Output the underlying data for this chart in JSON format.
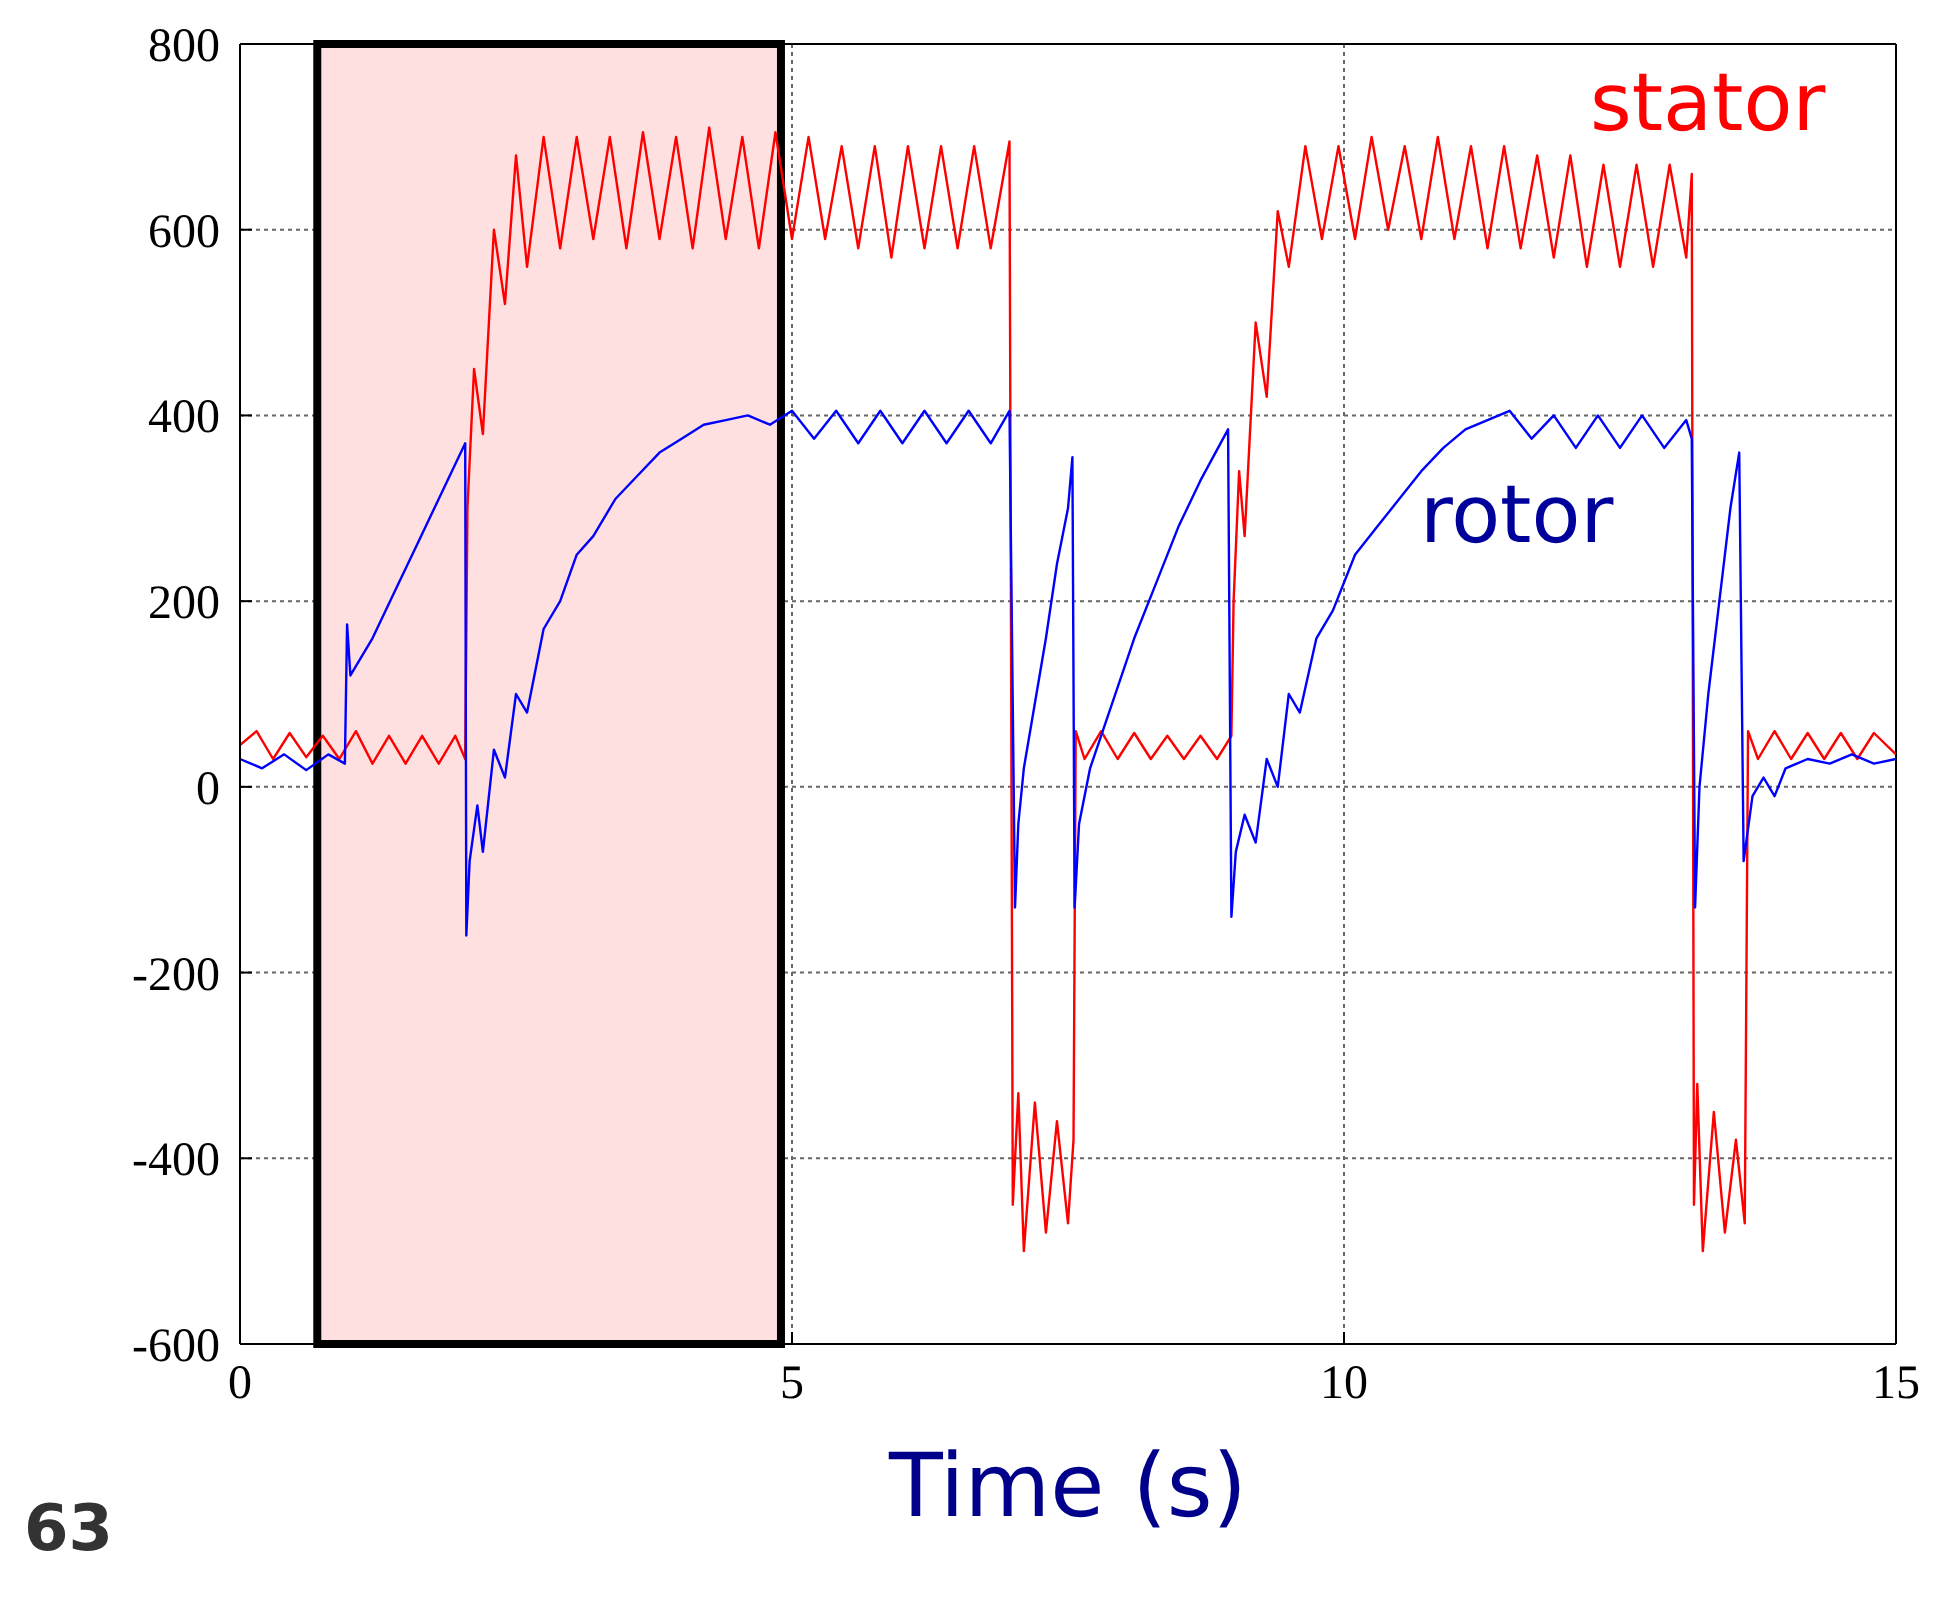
{
  "chart_data": {
    "type": "line",
    "xlabel": "Time (s)",
    "annotations": [
      "63"
    ],
    "xlim": [
      0,
      15
    ],
    "xticks": [
      0,
      5,
      10,
      15
    ],
    "ylim": [
      -600,
      800
    ],
    "yticks": [
      -600,
      -400,
      -200,
      0,
      200,
      400,
      600,
      800
    ],
    "grid": true,
    "marker": "none",
    "line_style": "solid",
    "bands": [
      {
        "axis": "x",
        "from": 0.7,
        "to": 4.9,
        "color": "#ffe0e0"
      }
    ],
    "series": [
      {
        "name": "stator",
        "color": "#ff0000",
        "x": [
          0,
          0.15,
          0.3,
          0.45,
          0.6,
          0.75,
          0.9,
          1.05,
          1.2,
          1.35,
          1.5,
          1.65,
          1.8,
          1.95,
          2.04,
          2.06,
          2.12,
          2.2,
          2.3,
          2.4,
          2.5,
          2.6,
          2.75,
          2.9,
          3.05,
          3.2,
          3.35,
          3.5,
          3.65,
          3.8,
          3.95,
          4.1,
          4.25,
          4.4,
          4.55,
          4.7,
          4.85,
          5.0,
          5.15,
          5.3,
          5.45,
          5.6,
          5.75,
          5.9,
          6.05,
          6.2,
          6.35,
          6.5,
          6.65,
          6.8,
          6.97,
          7.0,
          7.05,
          7.1,
          7.2,
          7.3,
          7.4,
          7.5,
          7.55,
          7.57,
          7.65,
          7.8,
          7.95,
          8.1,
          8.25,
          8.4,
          8.55,
          8.7,
          8.85,
          8.98,
          9.0,
          9.05,
          9.1,
          9.2,
          9.3,
          9.4,
          9.5,
          9.65,
          9.8,
          9.95,
          10.1,
          10.25,
          10.4,
          10.55,
          10.7,
          10.85,
          11.0,
          11.15,
          11.3,
          11.45,
          11.6,
          11.75,
          11.9,
          12.05,
          12.2,
          12.35,
          12.5,
          12.65,
          12.8,
          12.95,
          13.1,
          13.15,
          13.17,
          13.2,
          13.25,
          13.35,
          13.45,
          13.55,
          13.63,
          13.66,
          13.75,
          13.9,
          14.05,
          14.2,
          14.35,
          14.5,
          14.65,
          14.8,
          15
        ],
        "values": [
          45,
          60,
          30,
          58,
          32,
          55,
          30,
          60,
          25,
          55,
          25,
          55,
          25,
          55,
          30,
          300,
          450,
          380,
          600,
          520,
          680,
          560,
          700,
          580,
          700,
          590,
          700,
          580,
          705,
          590,
          700,
          580,
          710,
          590,
          700,
          580,
          705,
          590,
          700,
          590,
          690,
          580,
          690,
          570,
          690,
          580,
          690,
          580,
          690,
          580,
          695,
          -450,
          -330,
          -500,
          -340,
          -480,
          -360,
          -470,
          -380,
          60,
          30,
          60,
          30,
          58,
          30,
          55,
          30,
          55,
          30,
          55,
          200,
          340,
          270,
          500,
          420,
          620,
          560,
          690,
          590,
          690,
          590,
          700,
          600,
          690,
          590,
          700,
          590,
          690,
          580,
          690,
          580,
          680,
          570,
          680,
          560,
          670,
          560,
          670,
          560,
          670,
          570,
          660,
          -450,
          -320,
          -500,
          -350,
          -480,
          -380,
          -470,
          60,
          30,
          60,
          30,
          58,
          30,
          58,
          30,
          58,
          35
        ]
      },
      {
        "name": "rotor",
        "color": "#0000ff",
        "x": [
          0,
          0.2,
          0.4,
          0.6,
          0.8,
          0.95,
          0.97,
          1.0,
          1.2,
          1.4,
          1.6,
          1.8,
          2.04,
          2.05,
          2.08,
          2.15,
          2.2,
          2.3,
          2.4,
          2.5,
          2.6,
          2.75,
          2.9,
          3.05,
          3.2,
          3.4,
          3.6,
          3.8,
          4.0,
          4.2,
          4.4,
          4.6,
          4.8,
          5.0,
          5.2,
          5.4,
          5.6,
          5.8,
          6.0,
          6.2,
          6.4,
          6.6,
          6.8,
          6.97,
          7.02,
          7.05,
          7.1,
          7.2,
          7.3,
          7.4,
          7.5,
          7.54,
          7.56,
          7.6,
          7.7,
          7.9,
          8.1,
          8.3,
          8.5,
          8.7,
          8.95,
          8.98,
          9.02,
          9.1,
          9.2,
          9.3,
          9.4,
          9.5,
          9.6,
          9.75,
          9.9,
          10.1,
          10.3,
          10.5,
          10.7,
          10.9,
          11.1,
          11.3,
          11.5,
          11.7,
          11.9,
          12.1,
          12.3,
          12.5,
          12.7,
          12.9,
          13.1,
          13.15,
          13.18,
          13.22,
          13.3,
          13.4,
          13.5,
          13.58,
          13.62,
          13.7,
          13.8,
          13.9,
          14.0,
          14.2,
          14.4,
          14.6,
          14.8,
          15
        ],
        "values": [
          30,
          20,
          35,
          18,
          35,
          25,
          175,
          120,
          160,
          210,
          260,
          310,
          370,
          -160,
          -80,
          -20,
          -70,
          40,
          10,
          100,
          80,
          170,
          200,
          250,
          270,
          310,
          335,
          360,
          375,
          390,
          395,
          400,
          390,
          405,
          375,
          405,
          370,
          405,
          370,
          405,
          370,
          405,
          370,
          405,
          -130,
          -40,
          20,
          90,
          160,
          240,
          300,
          355,
          -130,
          -40,
          20,
          90,
          160,
          220,
          280,
          330,
          385,
          -140,
          -70,
          -30,
          -60,
          30,
          0,
          100,
          80,
          160,
          190,
          250,
          280,
          310,
          340,
          365,
          385,
          395,
          405,
          375,
          400,
          365,
          400,
          365,
          400,
          365,
          395,
          375,
          -130,
          0,
          100,
          200,
          300,
          360,
          -80,
          -10,
          10,
          -10,
          20,
          30,
          25,
          35,
          25,
          30
        ]
      }
    ]
  }
}
